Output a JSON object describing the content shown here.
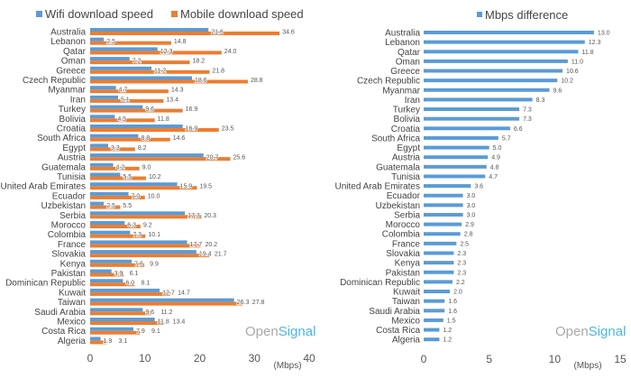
{
  "colors": {
    "wifi": "#5b9bd5",
    "mobile": "#ed7d31",
    "logo_open": "#a9a9a9",
    "logo_signal": "#4ab8e0"
  },
  "logo": {
    "part1": "Open",
    "part2": "Signal"
  },
  "chart_data": [
    {
      "type": "bar",
      "orientation": "horizontal",
      "categories": [
        "Australia",
        "Lebanon",
        "Qatar",
        "Oman",
        "Greece",
        "Czech Republic",
        "Myanmar",
        "Iran",
        "Turkey",
        "Bolivia",
        "Croatia",
        "South Africa",
        "Egypt",
        "Austria",
        "Guatemala",
        "Tunisia",
        "United Arab Emirates",
        "Ecuador",
        "Uzbekistan",
        "Serbia",
        "Morocco",
        "Colombia",
        "France",
        "Slovakia",
        "Kenya",
        "Pakistan",
        "Dominican Republic",
        "Kuwait",
        "Taiwan",
        "Saudi Arabia",
        "Mexico",
        "Costa Rica",
        "Algeria"
      ],
      "series": [
        {
          "name": "Wifi download speed",
          "values": [
            21.6,
            2.5,
            12.3,
            7.2,
            11.2,
            18.6,
            4.7,
            5.1,
            9.6,
            4.5,
            16.9,
            8.8,
            3.3,
            20.7,
            4.2,
            5.5,
            15.9,
            7.0,
            2.5,
            17.3,
            6.3,
            7.3,
            17.7,
            19.4,
            7.6,
            3.9,
            6.0,
            12.7,
            26.3,
            9.6,
            11.8,
            7.9,
            1.9
          ]
        },
        {
          "name": "Mobile download speed",
          "values": [
            34.6,
            14.8,
            24.0,
            18.2,
            21.8,
            28.8,
            14.3,
            13.4,
            16.9,
            11.8,
            23.5,
            14.6,
            8.2,
            25.6,
            9.0,
            10.2,
            19.5,
            10.0,
            5.5,
            20.3,
            9.2,
            10.1,
            20.2,
            21.7,
            9.9,
            6.1,
            8.1,
            14.7,
            27.8,
            11.2,
            13.4,
            9.1,
            3.1
          ]
        }
      ],
      "xlim": [
        0,
        40
      ],
      "xticks": [
        "0",
        "10",
        "20",
        "30",
        "40"
      ],
      "xunit": "(Mbps)",
      "legend": "top"
    },
    {
      "type": "bar",
      "orientation": "horizontal",
      "categories": [
        "Australia",
        "Lebanon",
        "Qatar",
        "Oman",
        "Greece",
        "Czech Republic",
        "Myanmar",
        "Iran",
        "Turkey",
        "Bolivia",
        "Croatia",
        "South Africa",
        "Egypt",
        "Austria",
        "Guatemala",
        "Tunisia",
        "United Arab Emirates",
        "Ecuador",
        "Uzbekistan",
        "Serbia",
        "Morocco",
        "Colombia",
        "France",
        "Slovakia",
        "Kenya",
        "Pakistan",
        "Dominican Republic",
        "Kuwait",
        "Taiwan",
        "Saudi Arabia",
        "Mexico",
        "Costa Rica",
        "Algeria"
      ],
      "series": [
        {
          "name": "Mbps difference",
          "values": [
            13.0,
            12.3,
            11.8,
            11.0,
            10.6,
            10.2,
            9.6,
            8.3,
            7.3,
            7.3,
            6.6,
            5.7,
            5.0,
            4.9,
            4.8,
            4.7,
            3.6,
            3.0,
            3.0,
            3.0,
            2.9,
            2.8,
            2.5,
            2.3,
            2.3,
            2.3,
            2.2,
            2.0,
            1.6,
            1.6,
            1.5,
            1.2,
            1.2
          ]
        }
      ],
      "xlim": [
        0,
        15
      ],
      "xticks": [
        "0",
        "5",
        "10",
        "15"
      ],
      "xunit": "(Mbps)",
      "legend": "top"
    }
  ]
}
